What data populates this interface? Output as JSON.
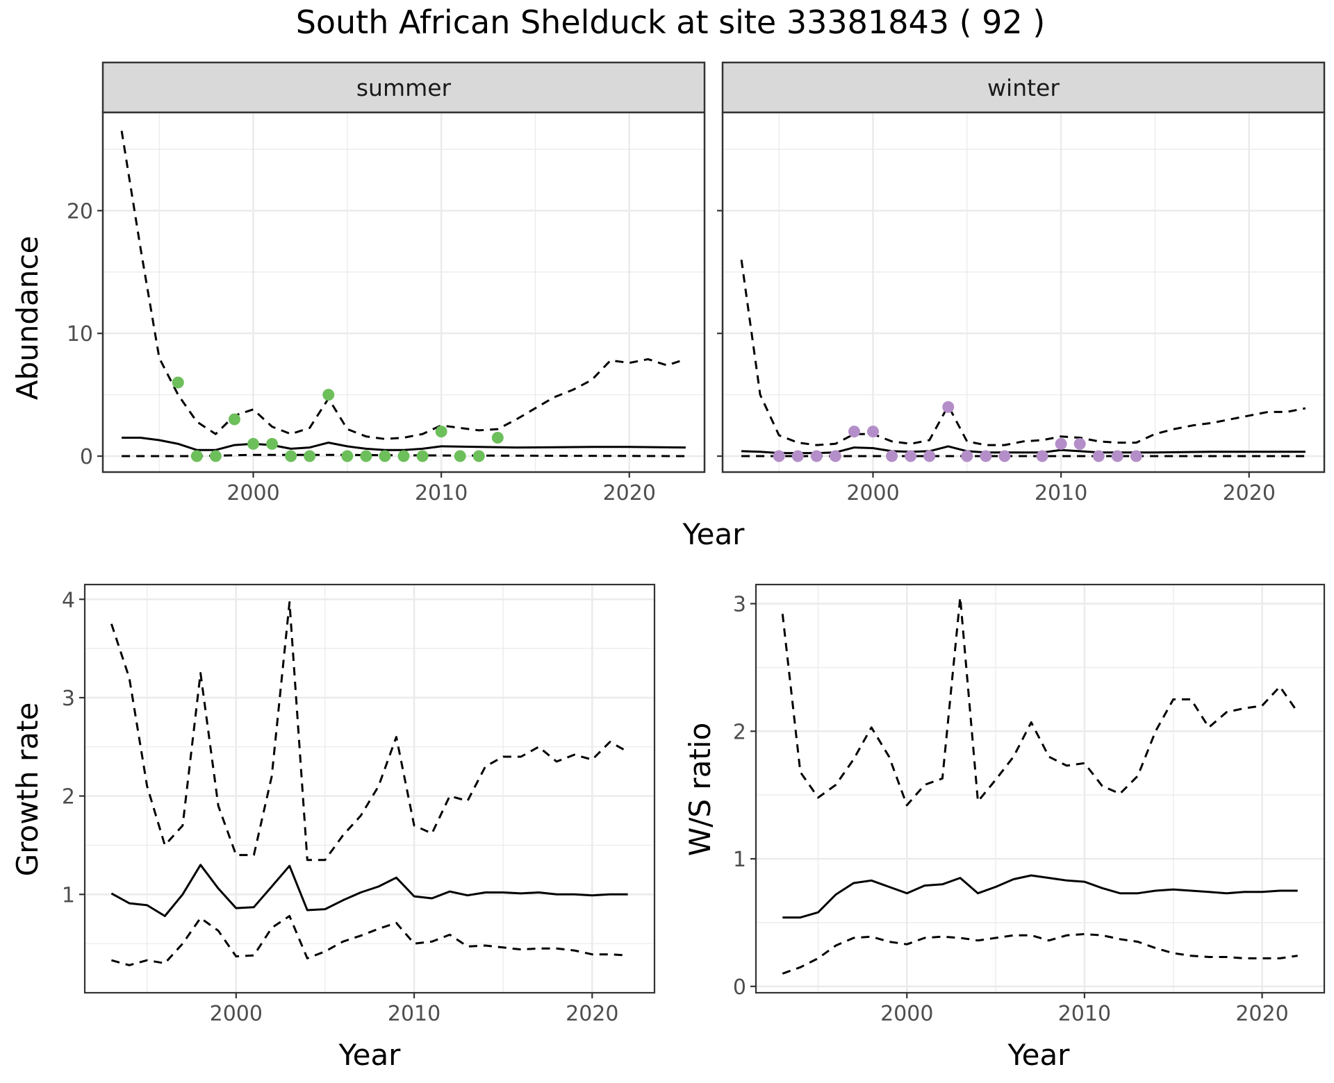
{
  "title": "South African Shelduck at site 33381843 ( 92 )",
  "colors": {
    "summer_points": "#6dbf5b",
    "winter_points": "#b48ec8",
    "lines": "#000000",
    "grid": "#ebebeb",
    "strip_fill": "#d9d9d9",
    "panel_border": "#333333"
  },
  "chart_data": [
    {
      "type": "line",
      "panel": "summer",
      "strip_label": "summer",
      "xlabel": "Year",
      "ylabel": "Abundance",
      "xlim": [
        1992,
        2024
      ],
      "ylim": [
        -1.3,
        28
      ],
      "xticks": [
        2000,
        2010,
        2020
      ],
      "yticks": [
        0,
        10,
        20
      ],
      "grid": true,
      "series": [
        {
          "role": "mean",
          "style": "solid",
          "x": [
            1993,
            1994,
            1995,
            1996,
            1997,
            1998,
            1999,
            2000,
            2001,
            2002,
            2003,
            2004,
            2005,
            2006,
            2007,
            2008,
            2009,
            2010,
            2012,
            2014,
            2016,
            2018,
            2020,
            2023
          ],
          "y": [
            1.5,
            1.5,
            1.3,
            1.0,
            0.5,
            0.5,
            0.9,
            1.0,
            0.9,
            0.6,
            0.7,
            1.1,
            0.8,
            0.6,
            0.5,
            0.5,
            0.6,
            0.8,
            0.75,
            0.7,
            0.72,
            0.75,
            0.75,
            0.7
          ]
        },
        {
          "role": "upper",
          "style": "dashed",
          "x": [
            1993,
            1994,
            1995,
            1996,
            1997,
            1998,
            1999,
            2000,
            2001,
            2002,
            2003,
            2004,
            2005,
            2006,
            2007,
            2008,
            2009,
            2010,
            2011,
            2012,
            2013,
            2014,
            2015,
            2016,
            2017,
            2018,
            2019,
            2020,
            2021,
            2022,
            2023
          ],
          "y": [
            26.5,
            17,
            8,
            5,
            2.8,
            1.8,
            3.3,
            3.8,
            2.4,
            1.8,
            2.3,
            4.7,
            2.2,
            1.6,
            1.4,
            1.5,
            1.8,
            2.5,
            2.3,
            2.1,
            2.2,
            3.0,
            3.9,
            4.8,
            5.4,
            6.2,
            7.8,
            7.6,
            7.9,
            7.4,
            7.9
          ]
        },
        {
          "role": "lower",
          "style": "dashed",
          "x": [
            1993,
            1997,
            2000,
            2004,
            2010,
            2023
          ],
          "y": [
            0,
            0,
            0.1,
            0.1,
            0.05,
            0
          ]
        },
        {
          "role": "observed",
          "style": "points",
          "x": [
            1996,
            1997,
            1998,
            1999,
            2000,
            2001,
            2002,
            2003,
            2004,
            2005,
            2006,
            2007,
            2008,
            2009,
            2010,
            2011,
            2012,
            2013
          ],
          "y": [
            6,
            0,
            0,
            3,
            1,
            1,
            0,
            0,
            5,
            0,
            0,
            0,
            0,
            0,
            2,
            0,
            0,
            1.5
          ]
        }
      ]
    },
    {
      "type": "line",
      "panel": "winter",
      "strip_label": "winter",
      "xlabel": "Year",
      "ylabel": "Abundance",
      "xlim": [
        1992,
        2024
      ],
      "ylim": [
        -1.3,
        28
      ],
      "xticks": [
        2000,
        2010,
        2020
      ],
      "yticks": [
        0,
        10,
        20
      ],
      "grid": true,
      "series": [
        {
          "role": "mean",
          "style": "solid",
          "x": [
            1993,
            1994,
            1995,
            1996,
            1997,
            1998,
            1999,
            2000,
            2001,
            2002,
            2003,
            2004,
            2005,
            2006,
            2007,
            2008,
            2009,
            2010,
            2011,
            2012,
            2013,
            2015,
            2018,
            2023
          ],
          "y": [
            0.4,
            0.35,
            0.25,
            0.25,
            0.25,
            0.3,
            0.7,
            0.65,
            0.4,
            0.35,
            0.4,
            0.8,
            0.4,
            0.3,
            0.3,
            0.3,
            0.3,
            0.5,
            0.4,
            0.3,
            0.3,
            0.3,
            0.35,
            0.35
          ]
        },
        {
          "role": "upper",
          "style": "dashed",
          "x": [
            1993,
            1994,
            1995,
            1996,
            1997,
            1998,
            1999,
            2000,
            2001,
            2002,
            2003,
            2004,
            2005,
            2006,
            2007,
            2008,
            2009,
            2010,
            2011,
            2012,
            2013,
            2014,
            2015,
            2016,
            2017,
            2018,
            2019,
            2020,
            2021,
            2022,
            2023
          ],
          "y": [
            16,
            5,
            1.7,
            1.1,
            0.9,
            1.0,
            1.8,
            1.8,
            1.2,
            1.0,
            1.3,
            4.1,
            1.2,
            0.9,
            0.9,
            1.2,
            1.3,
            1.6,
            1.5,
            1.2,
            1.1,
            1.1,
            1.8,
            2.2,
            2.5,
            2.7,
            3.0,
            3.3,
            3.6,
            3.6,
            3.9
          ]
        },
        {
          "role": "lower",
          "style": "dashed",
          "x": [
            1993,
            2023
          ],
          "y": [
            0,
            0
          ]
        },
        {
          "role": "observed",
          "style": "points",
          "x": [
            1995,
            1996,
            1997,
            1998,
            1999,
            2000,
            2001,
            2002,
            2003,
            2004,
            2005,
            2006,
            2007,
            2009,
            2010,
            2011,
            2012,
            2013,
            2014
          ],
          "y": [
            0,
            0,
            0,
            0,
            2,
            2,
            0,
            0,
            0,
            4,
            0,
            0,
            0,
            0,
            1,
            1,
            0,
            0,
            0
          ]
        }
      ]
    },
    {
      "type": "line",
      "panel": "growth",
      "xlabel": "Year",
      "ylabel": "Growth rate",
      "xlim": [
        1991.5,
        2023.5
      ],
      "ylim": [
        0,
        4.15
      ],
      "xticks": [
        2000,
        2010,
        2020
      ],
      "yticks": [
        1,
        2,
        3,
        4
      ],
      "grid": true,
      "series": [
        {
          "role": "mean",
          "style": "solid",
          "x": [
            1993,
            1994,
            1995,
            1996,
            1997,
            1998,
            1999,
            2000,
            2001,
            2002,
            2003,
            2004,
            2005,
            2006,
            2007,
            2008,
            2009,
            2010,
            2011,
            2012,
            2013,
            2014,
            2015,
            2016,
            2017,
            2018,
            2019,
            2020,
            2021,
            2022
          ],
          "y": [
            1.01,
            0.91,
            0.89,
            0.78,
            1.0,
            1.3,
            1.06,
            0.86,
            0.87,
            1.08,
            1.29,
            0.84,
            0.85,
            0.94,
            1.02,
            1.08,
            1.17,
            0.98,
            0.96,
            1.03,
            0.99,
            1.02,
            1.02,
            1.01,
            1.02,
            1.0,
            1.0,
            0.99,
            1.0,
            1.0
          ]
        },
        {
          "role": "upper",
          "style": "dashed",
          "x": [
            1993,
            1994,
            1995,
            1996,
            1997,
            1998,
            1999,
            2000,
            2001,
            2002,
            2003,
            2004,
            2005,
            2006,
            2007,
            2008,
            2009,
            2010,
            2011,
            2012,
            2013,
            2014,
            2015,
            2016,
            2017,
            2018,
            2019,
            2020,
            2021,
            2022
          ],
          "y": [
            3.75,
            3.2,
            2.1,
            1.5,
            1.7,
            3.25,
            1.9,
            1.4,
            1.4,
            2.2,
            3.97,
            1.35,
            1.35,
            1.6,
            1.8,
            2.1,
            2.6,
            1.7,
            1.62,
            2.0,
            1.95,
            2.3,
            2.4,
            2.4,
            2.5,
            2.35,
            2.42,
            2.37,
            2.55,
            2.45
          ]
        },
        {
          "role": "lower",
          "style": "dashed",
          "x": [
            1993,
            1994,
            1995,
            1996,
            1997,
            1998,
            1999,
            2000,
            2001,
            2002,
            2003,
            2004,
            2005,
            2006,
            2007,
            2008,
            2009,
            2010,
            2011,
            2012,
            2013,
            2014,
            2015,
            2016,
            2017,
            2018,
            2019,
            2020,
            2021,
            2022
          ],
          "y": [
            0.33,
            0.28,
            0.33,
            0.3,
            0.5,
            0.76,
            0.63,
            0.37,
            0.38,
            0.66,
            0.78,
            0.35,
            0.42,
            0.52,
            0.58,
            0.65,
            0.71,
            0.5,
            0.52,
            0.59,
            0.47,
            0.48,
            0.46,
            0.44,
            0.45,
            0.45,
            0.43,
            0.39,
            0.39,
            0.38
          ]
        }
      ]
    },
    {
      "type": "line",
      "panel": "ws_ratio",
      "xlabel": "Year",
      "ylabel": "W/S ratio",
      "xlim": [
        1991.5,
        2023.5
      ],
      "ylim": [
        -0.05,
        3.15
      ],
      "xticks": [
        2000,
        2010,
        2020
      ],
      "yticks": [
        0,
        1,
        2,
        3
      ],
      "grid": true,
      "series": [
        {
          "role": "mean",
          "style": "solid",
          "x": [
            1993,
            1994,
            1995,
            1996,
            1997,
            1998,
            1999,
            2000,
            2001,
            2002,
            2003,
            2004,
            2005,
            2006,
            2007,
            2008,
            2009,
            2010,
            2011,
            2012,
            2013,
            2014,
            2015,
            2016,
            2017,
            2018,
            2019,
            2020,
            2021,
            2022
          ],
          "y": [
            0.54,
            0.54,
            0.58,
            0.72,
            0.81,
            0.83,
            0.78,
            0.73,
            0.79,
            0.8,
            0.85,
            0.73,
            0.78,
            0.84,
            0.87,
            0.85,
            0.83,
            0.82,
            0.77,
            0.73,
            0.73,
            0.75,
            0.76,
            0.75,
            0.74,
            0.73,
            0.74,
            0.74,
            0.75,
            0.75
          ]
        },
        {
          "role": "upper",
          "style": "dashed",
          "x": [
            1993,
            1994,
            1995,
            1996,
            1997,
            1998,
            1999,
            2000,
            2001,
            2002,
            2003,
            2004,
            2005,
            2006,
            2007,
            2008,
            2009,
            2010,
            2011,
            2012,
            2013,
            2014,
            2015,
            2016,
            2017,
            2018,
            2019,
            2020,
            2021,
            2022
          ],
          "y": [
            2.92,
            1.68,
            1.48,
            1.58,
            1.78,
            2.03,
            1.8,
            1.42,
            1.58,
            1.63,
            3.05,
            1.45,
            1.62,
            1.8,
            2.07,
            1.8,
            1.73,
            1.75,
            1.57,
            1.51,
            1.65,
            2.0,
            2.25,
            2.25,
            2.03,
            2.15,
            2.18,
            2.2,
            2.35,
            2.15
          ]
        },
        {
          "role": "lower",
          "style": "dashed",
          "x": [
            1993,
            1994,
            1995,
            1996,
            1997,
            1998,
            1999,
            2000,
            2001,
            2002,
            2003,
            2004,
            2005,
            2006,
            2007,
            2008,
            2009,
            2010,
            2011,
            2012,
            2013,
            2014,
            2015,
            2016,
            2017,
            2018,
            2019,
            2020,
            2021,
            2022
          ],
          "y": [
            0.1,
            0.15,
            0.22,
            0.32,
            0.38,
            0.39,
            0.35,
            0.33,
            0.38,
            0.39,
            0.38,
            0.36,
            0.38,
            0.4,
            0.4,
            0.36,
            0.4,
            0.41,
            0.4,
            0.37,
            0.35,
            0.3,
            0.26,
            0.24,
            0.23,
            0.23,
            0.22,
            0.22,
            0.22,
            0.24
          ]
        }
      ]
    }
  ]
}
